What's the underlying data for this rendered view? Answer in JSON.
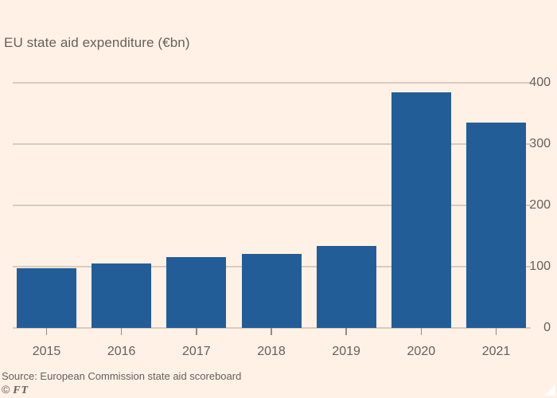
{
  "title": "EU state aid expenditure (€bn)",
  "source": "Source: European Commission state aid scoreboard",
  "credit": {
    "symbol": "©",
    "ft": "FT"
  },
  "colors": {
    "background": "#FFF1E5",
    "bar": "#235D97",
    "gridline": "#D7CCC0",
    "text": "#66605C"
  },
  "icons": {
    "corner_triangle": "expand-corner-triangle"
  },
  "chart_data": {
    "type": "bar",
    "title": "EU state aid expenditure (€bn)",
    "categories": [
      "2015",
      "2016",
      "2017",
      "2018",
      "2019",
      "2020",
      "2021"
    ],
    "values": [
      97,
      105,
      116,
      121,
      134,
      384,
      335
    ],
    "xlabel": "",
    "ylabel": "",
    "ylim": [
      0,
      400
    ],
    "yticks": [
      0,
      100,
      200,
      300,
      400
    ],
    "ytick_side": "right",
    "grid": true,
    "legend": false,
    "bar_color": "#235D97"
  }
}
